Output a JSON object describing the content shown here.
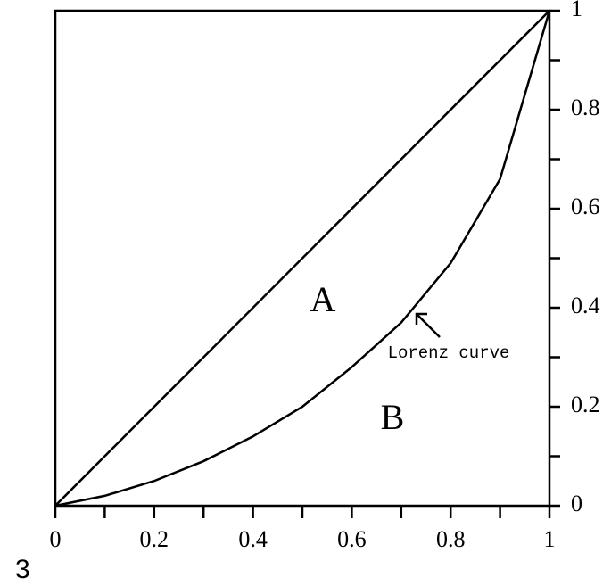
{
  "chart_data": {
    "type": "line",
    "figure_label": "3",
    "annotations": [
      "A",
      "B",
      "Lorenz curve"
    ],
    "series": [
      {
        "color": "#000000",
        "x": [
          0,
          1
        ],
        "y": [
          0,
          1
        ]
      },
      {
        "color": "#000000",
        "x": [
          0,
          0.1,
          0.2,
          0.3,
          0.4,
          0.5,
          0.6,
          0.7,
          0.8,
          0.9,
          1
        ],
        "y": [
          0,
          0.02,
          0.05,
          0.09,
          0.14,
          0.2,
          0.28,
          0.37,
          0.49,
          0.66,
          1
        ]
      }
    ],
    "xlim": [
      0,
      1
    ],
    "ylim": [
      0,
      1
    ],
    "xticks": [
      0,
      0.2,
      0.4,
      0.6,
      0.8,
      1
    ],
    "yticks": [
      0,
      0.2,
      0.4,
      0.6,
      0.8,
      1
    ],
    "xminorticks": [
      0.1,
      0.3,
      0.5,
      0.7,
      0.9
    ],
    "yminorticks": [
      0.1,
      0.3,
      0.5,
      0.7,
      0.9
    ]
  }
}
